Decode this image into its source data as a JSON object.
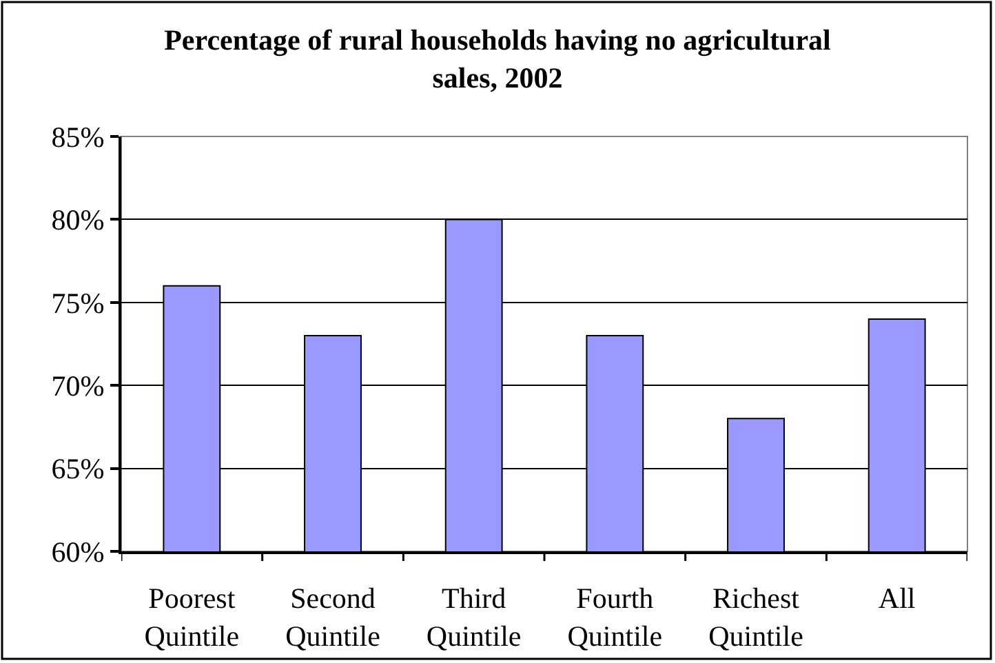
{
  "chart_data": {
    "type": "bar",
    "title": "Percentage of rural households having no agricultural sales, 2002",
    "categories": [
      "Poorest Quintile",
      "Second Quintile",
      "Third Quintile",
      "Fourth Quintile",
      "Richest Quintile",
      "All"
    ],
    "values": [
      76,
      73,
      80,
      73,
      68,
      74
    ],
    "color": "#9999ff",
    "ylim": [
      60,
      85
    ],
    "yticks": [
      {
        "value": 60,
        "label": "60%"
      },
      {
        "value": 65,
        "label": "65%"
      },
      {
        "value": 70,
        "label": "70%"
      },
      {
        "value": 75,
        "label": "75%"
      },
      {
        "value": 80,
        "label": "80%"
      },
      {
        "value": 85,
        "label": "85%"
      }
    ],
    "grid": "y"
  }
}
